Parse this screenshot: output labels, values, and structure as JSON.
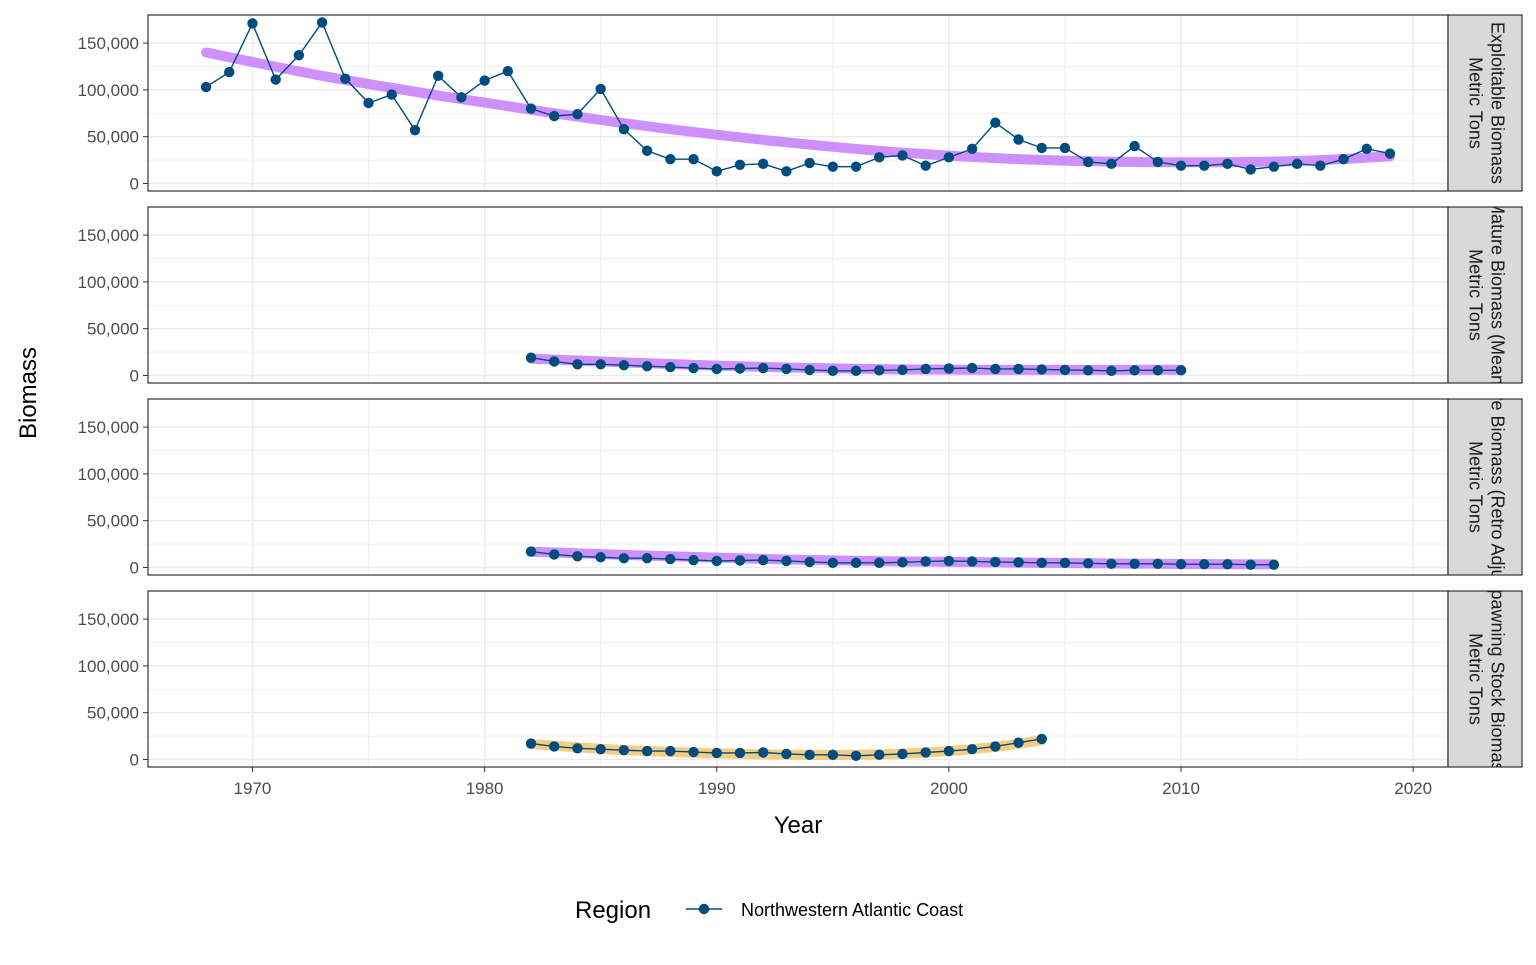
{
  "chart_data": {
    "type": "line",
    "xlabel": "Year",
    "ylabel": "Biomass",
    "xlim": [
      1965.5,
      2021.5
    ],
    "ylim": [
      -8000,
      180000
    ],
    "xticks": [
      1970,
      1980,
      1990,
      2000,
      2010,
      2020
    ],
    "yticks": [
      0,
      50000,
      100000,
      150000
    ],
    "ytick_labels": [
      "0",
      "50,000",
      "100,000",
      "150,000"
    ],
    "grid": true,
    "legend": {
      "title": "Region",
      "position": "bottom",
      "entries": [
        "Northwestern Atlantic Coast"
      ]
    },
    "colors": {
      "series": "#004c7f",
      "trend_purple": "#c77cff",
      "trend_orange": "#f5c46b",
      "strip_bg": "#d9d9d9",
      "grid": "#ebebeb"
    },
    "panels": [
      {
        "strip_lines": [
          "Exploitable Biomass",
          "Metric Tons"
        ],
        "series": [
          {
            "name": "Northwestern Atlantic Coast",
            "x": [
              1968,
              1969,
              1970,
              1971,
              1972,
              1973,
              1974,
              1975,
              1976,
              1977,
              1978,
              1979,
              1980,
              1981,
              1982,
              1983,
              1984,
              1985,
              1986,
              1987,
              1988,
              1989,
              1990,
              1991,
              1992,
              1993,
              1994,
              1995,
              1996,
              1997,
              1998,
              1999,
              2000,
              2001,
              2002,
              2003,
              2004,
              2005,
              2006,
              2007,
              2008,
              2009,
              2010,
              2011,
              2012,
              2013,
              2014,
              2015,
              2016,
              2017,
              2018,
              2019
            ],
            "y": [
              103000,
              119000,
              171000,
              111000,
              137000,
              172000,
              112000,
              86000,
              95000,
              57000,
              115000,
              92000,
              110000,
              120000,
              80000,
              72000,
              74000,
              101000,
              58000,
              35000,
              26000,
              26000,
              13000,
              20000,
              21000,
              13000,
              22000,
              18000,
              18000,
              28000,
              30000,
              19000,
              28000,
              37000,
              65000,
              47000,
              38000,
              38000,
              23000,
              21000,
              40000,
              23000,
              19000,
              19000,
              21000,
              15000,
              18000,
              21000,
              19000,
              26000,
              37000,
              32000
            ]
          }
        ],
        "trend": {
          "color": "trend_purple",
          "x": [
            1968,
            1973,
            1978,
            1983,
            1988,
            1993,
            1998,
            2003,
            2008,
            2013,
            2016,
            2019
          ],
          "y": [
            140000,
            115000,
            94000,
            75000,
            58000,
            44000,
            33000,
            26000,
            23000,
            23000,
            25000,
            29000
          ]
        }
      },
      {
        "strip_lines": [
          "Mature Biomass (Mean)",
          "Metric Tons"
        ],
        "series": [
          {
            "name": "Northwestern Atlantic Coast",
            "x": [
              1982,
              1983,
              1984,
              1985,
              1986,
              1987,
              1988,
              1989,
              1990,
              1991,
              1992,
              1993,
              1994,
              1995,
              1996,
              1997,
              1998,
              1999,
              2000,
              2001,
              2002,
              2003,
              2004,
              2005,
              2006,
              2007,
              2008,
              2009,
              2010
            ],
            "y": [
              19000,
              15000,
              12000,
              12000,
              11000,
              10000,
              9000,
              8000,
              7000,
              7500,
              8000,
              7000,
              6000,
              5000,
              5000,
              5500,
              6000,
              7000,
              7500,
              8000,
              7000,
              7000,
              6500,
              6000,
              5500,
              5000,
              5500,
              5500,
              5500
            ]
          }
        ],
        "trend": {
          "color": "trend_purple",
          "x": [
            1982,
            1986,
            1990,
            1994,
            1998,
            2002,
            2006,
            2010
          ],
          "y": [
            18000,
            14000,
            10500,
            8000,
            6500,
            6000,
            6000,
            6200
          ]
        }
      },
      {
        "strip_lines": [
          "Mature Biomass (Retro Adjusted)",
          "Metric Tons"
        ],
        "series": [
          {
            "name": "Northwestern Atlantic Coast",
            "x": [
              1982,
              1983,
              1984,
              1985,
              1986,
              1987,
              1988,
              1989,
              1990,
              1991,
              1992,
              1993,
              1994,
              1995,
              1996,
              1997,
              1998,
              1999,
              2000,
              2001,
              2002,
              2003,
              2004,
              2005,
              2006,
              2007,
              2008,
              2009,
              2010,
              2011,
              2012,
              2013,
              2014
            ],
            "y": [
              17000,
              14000,
              12000,
              11000,
              10000,
              10000,
              9000,
              8000,
              7000,
              7500,
              8000,
              7000,
              6000,
              5000,
              5000,
              5000,
              5500,
              6500,
              7000,
              6500,
              6000,
              5500,
              5000,
              5000,
              4500,
              4000,
              4000,
              4000,
              3500,
              3500,
              3500,
              3000,
              3000
            ]
          }
        ],
        "trend": {
          "color": "trend_purple",
          "x": [
            1982,
            1986,
            1990,
            1994,
            1998,
            2002,
            2006,
            2010,
            2014
          ],
          "y": [
            17000,
            13500,
            10500,
            8000,
            6500,
            5500,
            4500,
            3800,
            3300
          ]
        }
      },
      {
        "strip_lines": [
          "Spawning Stock Biomass",
          "Metric Tons"
        ],
        "series": [
          {
            "name": "Northwestern Atlantic Coast",
            "x": [
              1982,
              1983,
              1984,
              1985,
              1986,
              1987,
              1988,
              1989,
              1990,
              1991,
              1992,
              1993,
              1994,
              1995,
              1996,
              1997,
              1998,
              1999,
              2000,
              2001,
              2002,
              2003,
              2004
            ],
            "y": [
              17000,
              14000,
              12000,
              11000,
              10000,
              9000,
              9000,
              8000,
              7000,
              7000,
              7500,
              6000,
              5000,
              5000,
              4000,
              5000,
              6000,
              7500,
              9000,
              11000,
              14000,
              18000,
              22000
            ]
          }
        ],
        "trend": {
          "color": "trend_orange",
          "x": [
            1982,
            1985,
            1988,
            1991,
            1994,
            1997,
            2000,
            2002,
            2004
          ],
          "y": [
            16500,
            11500,
            8000,
            6000,
            5000,
            5500,
            9000,
            13500,
            20500
          ]
        }
      }
    ]
  }
}
